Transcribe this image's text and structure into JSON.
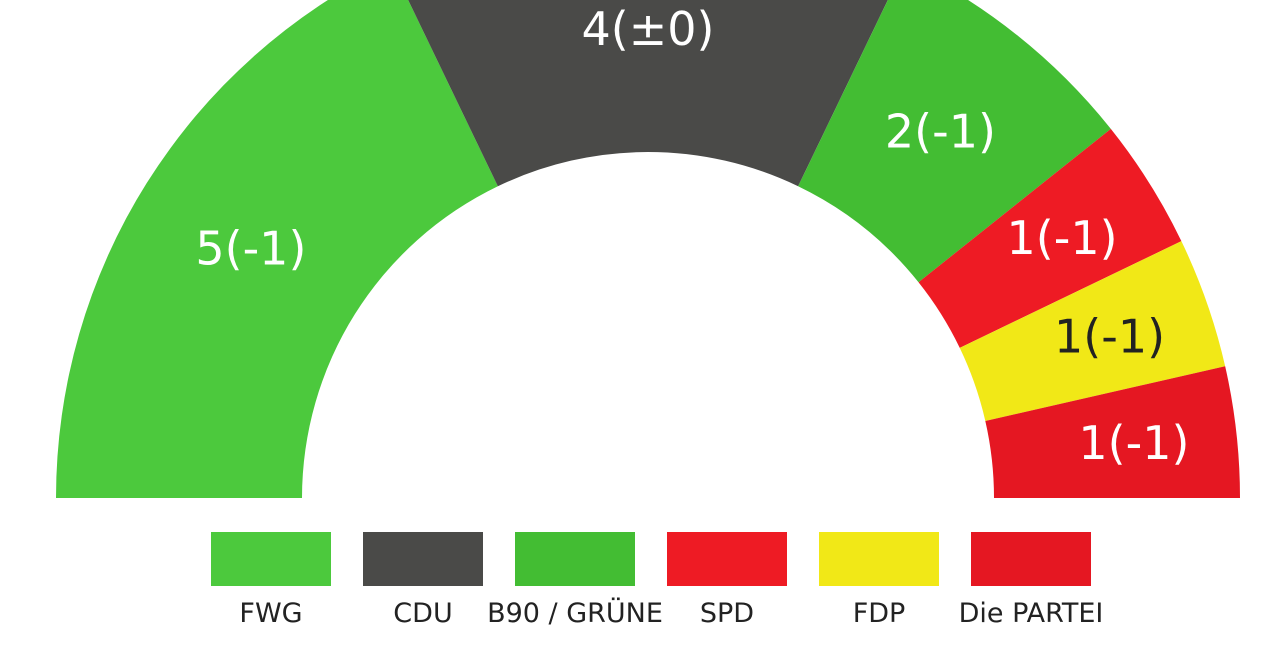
{
  "chart_data": {
    "type": "parliament-semicircle",
    "title": "",
    "seat_total": 14,
    "segments": [
      {
        "party": "FWG",
        "seats": 5,
        "label": "5(-1)",
        "color": "#4cc93d",
        "label_color": "#ffffff"
      },
      {
        "party": "CDU",
        "seats": 4,
        "label": "4(±0)",
        "color": "#4a4a48",
        "label_color": "#ffffff"
      },
      {
        "party": "B90 / GRÜNE",
        "seats": 2,
        "label": "2(-1)",
        "color": "#43bd33",
        "label_color": "#ffffff"
      },
      {
        "party": "SPD",
        "seats": 1,
        "label": "1(-1)",
        "color": "#ee1b24",
        "label_color": "#ffffff"
      },
      {
        "party": "FDP",
        "seats": 1,
        "label": "1(-1)",
        "color": "#f1e817",
        "label_color": "#222222"
      },
      {
        "party": "Die PARTEI",
        "seats": 1,
        "label": "1(-1)",
        "color": "#e51722",
        "label_color": "#ffffff"
      }
    ],
    "legend": [
      {
        "label": "FWG",
        "color": "#4cc93d"
      },
      {
        "label": "CDU",
        "color": "#4a4a48"
      },
      {
        "label": "B90 / GRÜNE",
        "color": "#43bd33"
      },
      {
        "label": "SPD",
        "color": "#ee1b24"
      },
      {
        "label": "FDP",
        "color": "#f1e817"
      },
      {
        "label": "Die PARTEI",
        "color": "#e51722"
      }
    ]
  }
}
